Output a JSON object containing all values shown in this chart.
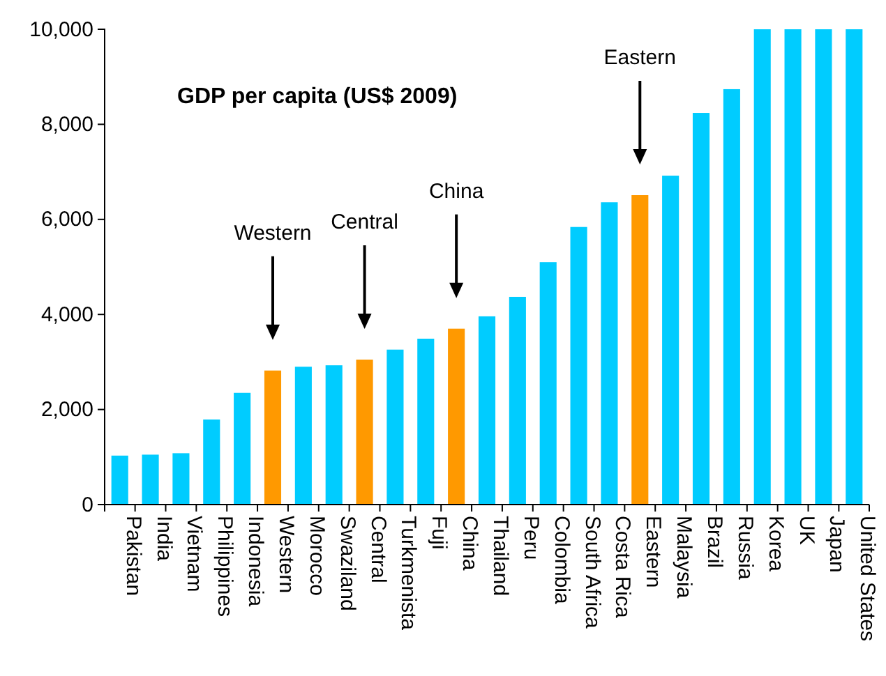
{
  "chart_data": {
    "type": "bar",
    "title": "GDP per capita (US$ 2009)",
    "categories": [
      "Pakistan",
      "India",
      "Vietnam",
      "Philippines",
      "Indonesia",
      "Western",
      "Morocco",
      "Swaziland",
      "Central",
      "Turkmenista",
      "Fuji",
      "China",
      "Thailand",
      "Peru",
      "Colombia",
      "South Africa",
      "Costa Rica",
      "Eastern",
      "Malaysia",
      "Brazil",
      "Russia",
      "Korea",
      "UK",
      "Japan",
      "United States"
    ],
    "values": [
      1030,
      1050,
      1080,
      1790,
      2350,
      2820,
      2900,
      2930,
      3050,
      3260,
      3490,
      3700,
      3960,
      4370,
      5100,
      5840,
      6360,
      6510,
      6920,
      8240,
      8740,
      10000,
      10000,
      10000,
      10000
    ],
    "colors": [
      "#00ccff",
      "#00ccff",
      "#00ccff",
      "#00ccff",
      "#00ccff",
      "#ff9900",
      "#00ccff",
      "#00ccff",
      "#ff9900",
      "#00ccff",
      "#00ccff",
      "#ff9900",
      "#00ccff",
      "#00ccff",
      "#00ccff",
      "#00ccff",
      "#00ccff",
      "#ff9900",
      "#00ccff",
      "#00ccff",
      "#00ccff",
      "#00ccff",
      "#00ccff",
      "#00ccff",
      "#00ccff"
    ],
    "ylim": [
      0,
      10000
    ],
    "yticks": [
      {
        "value": 0,
        "label": "0"
      },
      {
        "value": 2000,
        "label": "2,000"
      },
      {
        "value": 4000,
        "label": "4,000"
      },
      {
        "value": 6000,
        "label": "6,000"
      },
      {
        "value": 8000,
        "label": "8,000"
      },
      {
        "value": 10000,
        "label": "10,000"
      }
    ],
    "annotations": [
      "Western",
      "Central",
      "China",
      "Eastern"
    ]
  }
}
